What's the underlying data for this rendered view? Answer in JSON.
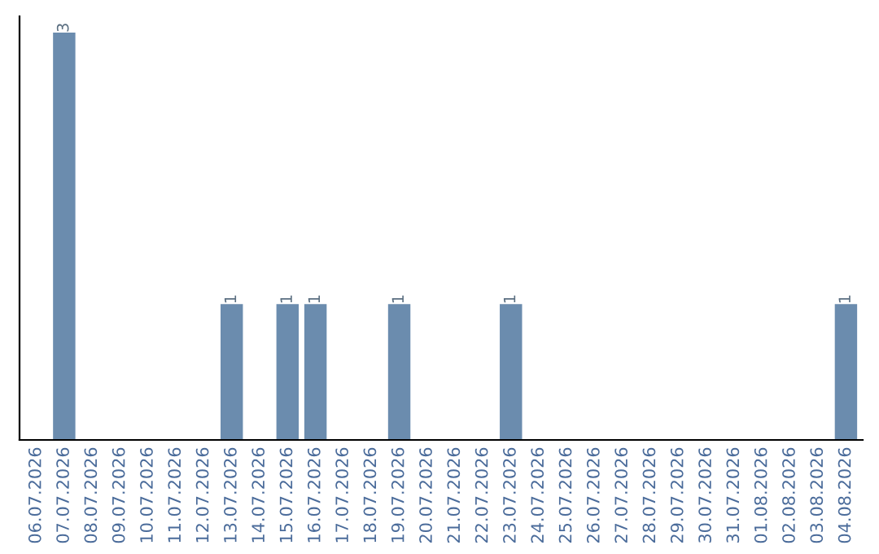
{
  "chart_data": {
    "type": "bar",
    "categories": [
      "06.07.2026",
      "07.07.2026",
      "08.07.2026",
      "09.07.2026",
      "10.07.2026",
      "11.07.2026",
      "12.07.2026",
      "13.07.2026",
      "14.07.2026",
      "15.07.2026",
      "16.07.2026",
      "17.07.2026",
      "18.07.2026",
      "19.07.2026",
      "20.07.2026",
      "21.07.2026",
      "22.07.2026",
      "23.07.2026",
      "24.07.2026",
      "25.07.2026",
      "26.07.2026",
      "27.07.2026",
      "28.07.2026",
      "29.07.2026",
      "30.07.2026",
      "31.07.2026",
      "01.08.2026",
      "02.08.2026",
      "03.08.2026",
      "04.08.2026"
    ],
    "values": [
      0,
      3,
      0,
      0,
      0,
      0,
      0,
      1,
      0,
      1,
      1,
      0,
      0,
      1,
      0,
      0,
      0,
      1,
      0,
      0,
      0,
      0,
      0,
      0,
      0,
      0,
      0,
      0,
      0,
      1
    ],
    "color": "#6b8cae",
    "value_labels": [
      null,
      "3",
      null,
      null,
      null,
      null,
      null,
      "1",
      null,
      "1",
      "1",
      null,
      null,
      "1",
      null,
      null,
      null,
      "1",
      null,
      null,
      null,
      null,
      null,
      null,
      null,
      null,
      null,
      null,
      null,
      "1"
    ],
    "tick_labels": "x",
    "grid": false,
    "legend": false
  }
}
